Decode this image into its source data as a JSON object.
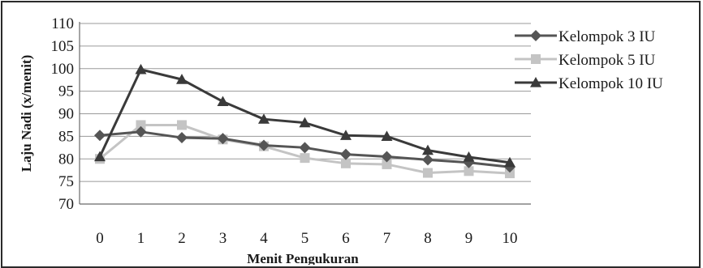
{
  "chart_data": {
    "type": "line",
    "title": "",
    "xlabel": "Menit Pengukuran",
    "ylabel": "Laju Nadi  (x/menit)",
    "x": [
      0,
      1,
      2,
      3,
      4,
      5,
      6,
      7,
      8,
      9,
      10
    ],
    "xticks": [
      "0",
      "1",
      "2",
      "3",
      "4",
      "5",
      "6",
      "7",
      "8",
      "9",
      "10"
    ],
    "ylim": [
      70,
      110
    ],
    "yticks": [
      "70",
      "75",
      "80",
      "85",
      "90",
      "95",
      "100",
      "105",
      "110"
    ],
    "grid": "horizontal",
    "legend_position": "right",
    "series": [
      {
        "name": "Kelompok 3 IU",
        "marker": "diamond",
        "color": "#555555",
        "values": [
          85.2,
          86.0,
          84.7,
          84.5,
          83.0,
          82.5,
          81.0,
          80.5,
          79.8,
          79.2,
          78.2
        ]
      },
      {
        "name": "Kelompok 5 IU",
        "marker": "square",
        "color": "#c4c4c4",
        "values": [
          80.0,
          87.5,
          87.5,
          84.3,
          82.8,
          80.2,
          79.0,
          78.8,
          76.9,
          77.3,
          76.8
        ]
      },
      {
        "name": "Kelompok 10 IU",
        "marker": "triangle",
        "color": "#3a3a3a",
        "values": [
          80.5,
          99.8,
          97.6,
          92.7,
          88.8,
          88.0,
          85.2,
          85.0,
          81.9,
          80.4,
          79.2
        ]
      }
    ]
  }
}
